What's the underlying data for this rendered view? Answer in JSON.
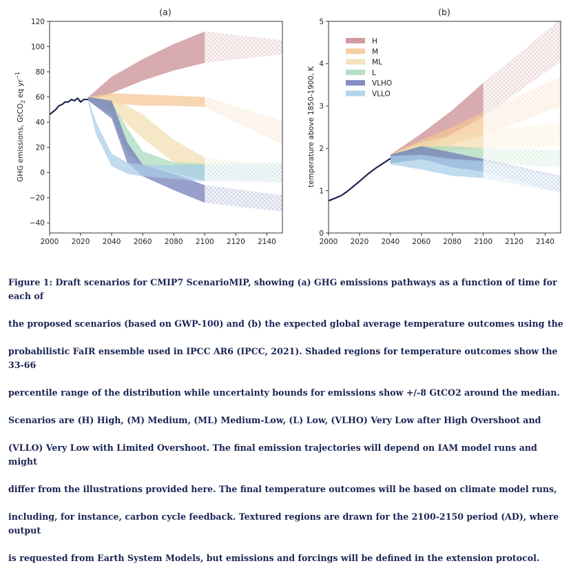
{
  "chart_data": [
    {
      "type": "area",
      "title": "(a)",
      "xlabel": "",
      "ylabel": "GHG emissions, GtCO",
      "ylabel_sub": "2",
      "ylabel_rest": "eq yr",
      "ylabel_sup": "−1",
      "xlim": [
        2000,
        2150
      ],
      "ylim": [
        -48,
        120
      ],
      "xticks": [
        2000,
        2020,
        2040,
        2060,
        2080,
        2100,
        2120,
        2140
      ],
      "yticks": [
        -40,
        -20,
        0,
        20,
        40,
        60,
        80,
        100,
        120
      ],
      "historical": {
        "x": [
          2000,
          2002,
          2004,
          2006,
          2008,
          2010,
          2012,
          2014,
          2016,
          2018,
          2020,
          2022,
          2025
        ],
        "y": [
          46,
          48,
          50,
          53,
          54,
          56,
          56,
          58,
          57,
          59,
          56,
          58,
          58
        ]
      },
      "series": [
        {
          "name": "H",
          "color": "#c98a8f",
          "x": [
            2025,
            2040,
            2060,
            2080,
            2100,
            2150
          ],
          "upper": [
            60,
            76,
            90,
            102,
            112,
            105
          ],
          "lower": [
            57,
            63,
            73,
            81,
            87,
            94
          ]
        },
        {
          "name": "M",
          "color": "#f5c596",
          "x": [
            2025,
            2040,
            2060,
            2080,
            2100,
            2150
          ],
          "upper": [
            60,
            63,
            62,
            61,
            60,
            41
          ],
          "lower": [
            57,
            55,
            53,
            53,
            52,
            22
          ]
        },
        {
          "name": "ML",
          "color": "#f3deb0",
          "x": [
            2025,
            2040,
            2060,
            2080,
            2100,
            2150
          ],
          "upper": [
            60,
            60,
            46,
            26,
            12,
            5
          ],
          "lower": [
            57,
            50,
            27,
            8,
            -2,
            -8
          ]
        },
        {
          "name": "L",
          "color": "#a9d9bd",
          "x": [
            2025,
            2040,
            2050,
            2060,
            2080,
            2100,
            2150
          ],
          "upper": [
            60,
            56,
            35,
            17,
            8,
            7,
            8
          ],
          "lower": [
            57,
            46,
            15,
            6,
            0,
            -6,
            -8
          ]
        },
        {
          "name": "VLHO",
          "color": "#6f7ab5",
          "x": [
            2025,
            2040,
            2050,
            2060,
            2080,
            2100,
            2150
          ],
          "upper": [
            60,
            57,
            24,
            6,
            -1,
            -10,
            -18
          ],
          "lower": [
            57,
            43,
            8,
            -3,
            -14,
            -24,
            -31
          ]
        },
        {
          "name": "VLLO",
          "color": "#a7cde8",
          "x": [
            2025,
            2030,
            2040,
            2050,
            2060,
            2080,
            2100,
            2150
          ],
          "upper": [
            58,
            40,
            15,
            8,
            6,
            6,
            6,
            6
          ],
          "lower": [
            55,
            30,
            5,
            -1,
            -3,
            -5,
            -7,
            -7
          ]
        }
      ]
    },
    {
      "type": "area",
      "title": "(b)",
      "xlabel": "",
      "ylabel": "temperature above 1850-1900, K",
      "xlim": [
        2000,
        2150
      ],
      "ylim": [
        0,
        5
      ],
      "xticks": [
        2000,
        2020,
        2040,
        2060,
        2080,
        2100,
        2120,
        2140
      ],
      "yticks": [
        0,
        1,
        2,
        3,
        4,
        5
      ],
      "historical": {
        "x": [
          2000,
          2004,
          2008,
          2012,
          2016,
          2020,
          2025,
          2030,
          2035,
          2040
        ],
        "y": [
          0.76,
          0.82,
          0.88,
          0.98,
          1.1,
          1.22,
          1.38,
          1.52,
          1.64,
          1.76
        ]
      },
      "legend": [
        "H",
        "M",
        "ML",
        "L",
        "VLHO",
        "VLLO"
      ],
      "series": [
        {
          "name": "H",
          "color": "#c98a8f",
          "x": [
            2040,
            2060,
            2080,
            2100,
            2150
          ],
          "upper": [
            1.85,
            2.35,
            2.9,
            3.55,
            5.05
          ],
          "lower": [
            1.65,
            1.95,
            2.35,
            2.75,
            4.05
          ]
        },
        {
          "name": "M",
          "color": "#f5c596",
          "x": [
            2040,
            2060,
            2080,
            2100,
            2150
          ],
          "upper": [
            1.85,
            2.2,
            2.5,
            2.85,
            3.7
          ],
          "lower": [
            1.65,
            1.85,
            2.1,
            2.3,
            3.0
          ]
        },
        {
          "name": "ML",
          "color": "#f3deb0",
          "x": [
            2040,
            2060,
            2080,
            2100,
            2150
          ],
          "upper": [
            1.85,
            2.15,
            2.3,
            2.4,
            2.6
          ],
          "lower": [
            1.65,
            1.8,
            1.95,
            2.0,
            2.05
          ]
        },
        {
          "name": "L",
          "color": "#a9d9bd",
          "x": [
            2040,
            2060,
            2080,
            2100,
            2150
          ],
          "upper": [
            1.85,
            2.05,
            2.05,
            2.0,
            1.95
          ],
          "lower": [
            1.65,
            1.72,
            1.7,
            1.65,
            1.55
          ]
        },
        {
          "name": "VLHO",
          "color": "#6f7ab5",
          "x": [
            2040,
            2060,
            2080,
            2100,
            2150
          ],
          "upper": [
            1.85,
            2.05,
            1.9,
            1.75,
            1.35
          ],
          "lower": [
            1.65,
            1.75,
            1.55,
            1.45,
            0.95
          ]
        },
        {
          "name": "VLLO",
          "color": "#a7cde8",
          "x": [
            2040,
            2060,
            2080,
            2100,
            2150
          ],
          "upper": [
            1.82,
            1.85,
            1.75,
            1.7,
            1.3
          ],
          "lower": [
            1.62,
            1.5,
            1.35,
            1.3,
            0.95
          ]
        }
      ]
    }
  ],
  "caption": {
    "lines": [
      "Figure 1: Draft scenarios for CMIP7 ScenarioMIP, showing (a) GHG emissions pathways as a function of time for each of",
      "the proposed scenarios (based on GWP-100) and (b) the expected global average temperature outcomes using the",
      "probabilistic FaIR ensemble used in IPCC AR6 (IPCC, 2021). Shaded regions for temperature outcomes show the 33-66",
      "percentile  range of the distribution while uncertainty bounds for emissions show +/-8 GtCO2 around the median.",
      "Scenarios are (H) High, (M) Medium, (ML) Medium-Low, (L) Low, (VLHO) Very Low after High Overshoot and",
      "(VLLO) Very Low with Limited Overshoot. The final emission trajectories  will depend on IAM model runs and might",
      "differ from the illustrations provided here.  The final temperature outcomes will be based on climate model runs,",
      "including, for instance, carbon cycle feedback. Textured regions are drawn for the 2100-2150 period (AD), where output",
      "is requested from Earth System Models, but emissions and forcings will be defined in the extension protocol."
    ]
  },
  "colors": {
    "historical": "#1c2550",
    "caption": "#1b2454"
  }
}
